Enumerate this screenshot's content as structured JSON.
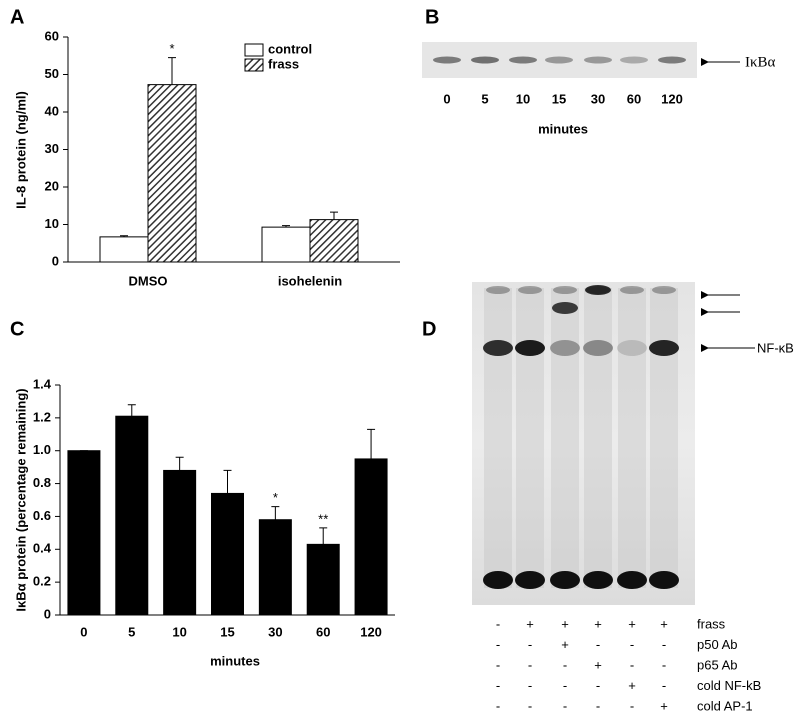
{
  "chart_data": [
    {
      "type": "bar",
      "panel": "A",
      "ylabel": "IL-8 protein (ng/ml)",
      "categories": [
        "DMSO",
        "isohelenin"
      ],
      "series": [
        {
          "name": "control",
          "color": "#ffffff",
          "values": [
            6.7,
            9.3
          ],
          "errors": [
            0.3,
            0.4
          ]
        },
        {
          "name": "frass",
          "color": "hatch",
          "values": [
            47.3,
            11.3
          ],
          "errors": [
            7.2,
            2.0
          ],
          "significance": [
            "*",
            null
          ]
        }
      ],
      "ylim": [
        0,
        60
      ],
      "yticks": [
        0,
        10,
        20,
        30,
        40,
        50,
        60
      ],
      "legend": "top-right"
    },
    {
      "type": "bar",
      "panel": "C",
      "ylabel": "IκBα protein (percentage remaining)",
      "xlabel": "minutes",
      "categories": [
        "0",
        "5",
        "10",
        "15",
        "30",
        "60",
        "120"
      ],
      "series": [
        {
          "color": "#000000",
          "values": [
            1.0,
            1.21,
            0.88,
            0.74,
            0.58,
            0.43,
            0.95
          ],
          "errors": [
            0,
            0.07,
            0.08,
            0.14,
            0.08,
            0.1,
            0.18
          ],
          "significance": [
            null,
            null,
            null,
            null,
            "*",
            "**",
            null
          ]
        }
      ],
      "ylim": [
        0,
        1.4
      ],
      "yticks": [
        0,
        0.2,
        0.4,
        0.6,
        0.8,
        {
          "value": 1,
          "label": "1.0"
        },
        1.2,
        1.4
      ]
    }
  ],
  "gels": [
    {
      "panel": "B",
      "lanes": [
        "0",
        "5",
        "10",
        "15",
        "30",
        "60",
        "120"
      ],
      "xlabel": "minutes",
      "band_label": "IκBα"
    },
    {
      "panel": "D",
      "band_label": "NF-κB",
      "conditions": [
        {
          "name": "frass",
          "signs": [
            "-",
            "+",
            "+",
            "+",
            "+",
            "+"
          ]
        },
        {
          "name": "p50 Ab",
          "signs": [
            "-",
            "-",
            "+",
            "-",
            "-",
            "-"
          ]
        },
        {
          "name": "p65 Ab",
          "signs": [
            "-",
            "-",
            "-",
            "+",
            "-",
            "-"
          ]
        },
        {
          "name": "cold NF-kB",
          "signs": [
            "-",
            "-",
            "-",
            "-",
            "+",
            "-"
          ]
        },
        {
          "name": "cold AP-1",
          "signs": [
            "-",
            "-",
            "-",
            "-",
            "-",
            "+"
          ]
        }
      ]
    }
  ]
}
